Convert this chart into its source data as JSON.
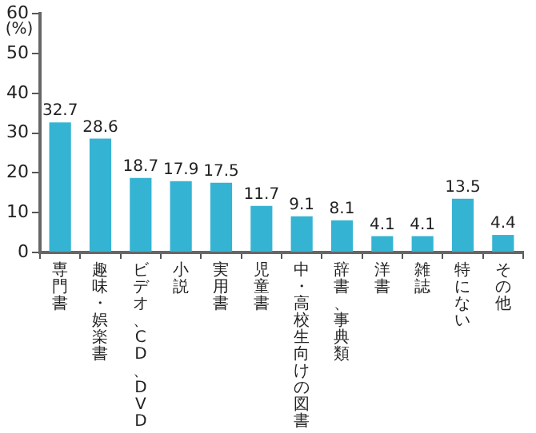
{
  "chart_data": {
    "type": "bar",
    "ylabel": "(%)",
    "categories": [
      "専門書",
      "趣味・娯楽書",
      "ビデオ、CD、DVD",
      "小説",
      "実用書",
      "児童書",
      "中・高校生向けの図書",
      "辞書、事典類",
      "洋書",
      "雑誌",
      "特にない",
      "その他"
    ],
    "values": [
      32.7,
      28.6,
      18.7,
      17.9,
      17.5,
      11.7,
      9.1,
      8.1,
      4.1,
      4.1,
      13.5,
      4.4
    ],
    "color": "#35b3d3",
    "ylim": [
      0,
      60
    ],
    "yticks": [
      0,
      10,
      20,
      30,
      40,
      50,
      60
    ],
    "grid": false,
    "data_labels": true,
    "legend": false
  }
}
